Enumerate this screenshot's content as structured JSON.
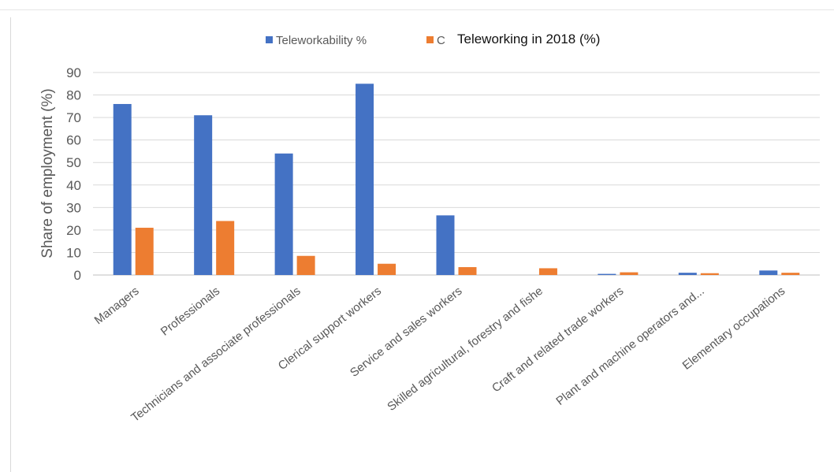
{
  "chart_data": {
    "type": "bar",
    "title": "",
    "ylabel": "Share of employment (%)",
    "xlabel": "",
    "ylim": [
      0,
      90
    ],
    "yticks": [
      0,
      10,
      20,
      30,
      40,
      50,
      60,
      70,
      80,
      90
    ],
    "grid": true,
    "legend_position": "top",
    "categories": [
      "Managers",
      "Professionals",
      "Technicians and associate professionals",
      "Clerical support workers",
      "Service and sales workers",
      "Skilled agricultural, forestry and fishe",
      "Craft and related trade workers",
      "Plant and machine operators and...",
      "Elementary occupations"
    ],
    "series": [
      {
        "name": "Teleworkability %",
        "color": "#4472c4",
        "values": [
          76,
          71,
          54,
          85,
          26.5,
          0,
          0.5,
          1,
          2
        ]
      },
      {
        "name": "Teleworking in 2018 (%)",
        "legend_visible_prefix": "C",
        "color": "#ed7d31",
        "values": [
          21,
          24,
          8.5,
          5,
          3.5,
          3,
          1.2,
          0.8,
          1
        ]
      }
    ]
  },
  "legend": {
    "overlay_label": "Teleworking in 2018 (%)"
  }
}
